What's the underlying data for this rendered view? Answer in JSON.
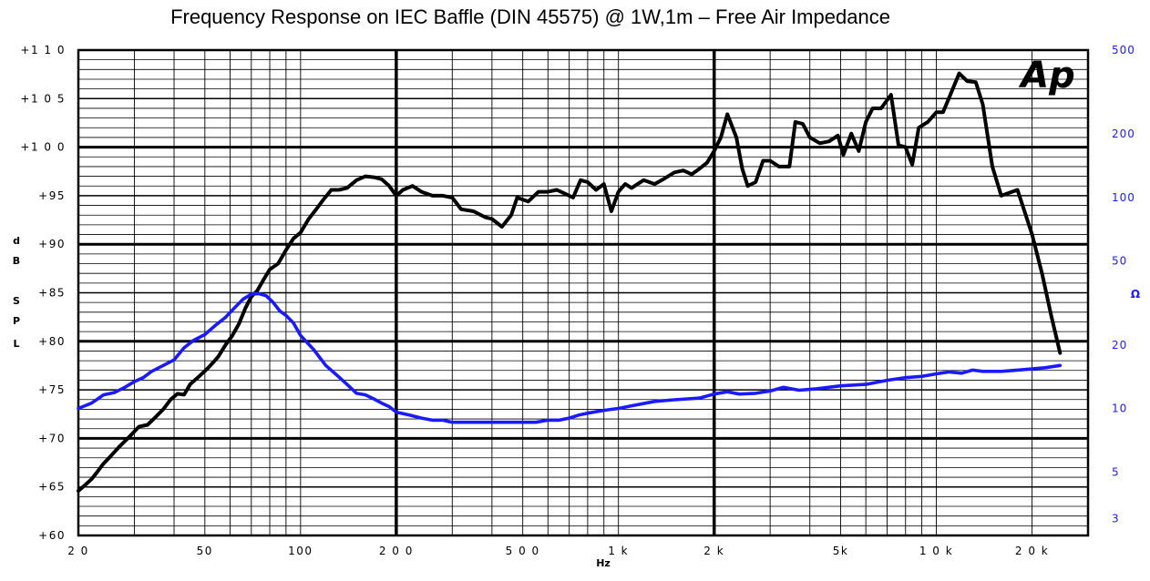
{
  "chart_data": {
    "type": "line",
    "title": "Frequency Response on IEC Baffle (DIN 45575)  @ 1W,1m – Free Air Impedance",
    "logo_text": "Ap",
    "x_axis": {
      "label": "Hz",
      "scale": "log",
      "range": [
        20,
        30000
      ],
      "ticks": [
        {
          "value": 20,
          "label": "2 0"
        },
        {
          "value": 50,
          "label": "50"
        },
        {
          "value": 100,
          "label": "100"
        },
        {
          "value": 200,
          "label": "2 0 0"
        },
        {
          "value": 500,
          "label": "5 0 0"
        },
        {
          "value": 1000,
          "label": "1 k"
        },
        {
          "value": 2000,
          "label": "2 k"
        },
        {
          "value": 5000,
          "label": "5k"
        },
        {
          "value": 10000,
          "label": "1 0 k"
        },
        {
          "value": 20000,
          "label": "2 0 k"
        }
      ]
    },
    "y_left": {
      "label_letters": [
        "d",
        "B",
        "",
        "S",
        "P",
        "L"
      ],
      "range": [
        60,
        110
      ],
      "ticks": [
        {
          "value": 110,
          "label": "+1 1 0"
        },
        {
          "value": 105,
          "label": "+1 0 5"
        },
        {
          "value": 100,
          "label": "+1 0 0"
        },
        {
          "value": 95,
          "label": "+95"
        },
        {
          "value": 90,
          "label": "+90"
        },
        {
          "value": 85,
          "label": "+85"
        },
        {
          "value": 80,
          "label": "+80"
        },
        {
          "value": 75,
          "label": "+75"
        },
        {
          "value": 70,
          "label": "+70"
        },
        {
          "value": 65,
          "label": "+65"
        },
        {
          "value": 60,
          "label": "+60"
        }
      ]
    },
    "y_right": {
      "label": "Ω",
      "scale": "log",
      "range": [
        2.5,
        500
      ],
      "ticks": [
        {
          "value": 500,
          "label": "500"
        },
        {
          "value": 200,
          "label": "200"
        },
        {
          "value": 100,
          "label": "100"
        },
        {
          "value": 50,
          "label": "50"
        },
        {
          "value": 20,
          "label": "20"
        },
        {
          "value": 10,
          "label": "10"
        },
        {
          "value": 5,
          "label": "5"
        },
        {
          "value": 3,
          "label": "3"
        }
      ]
    },
    "grid": true,
    "series": [
      {
        "color": "#000000",
        "axis": "left",
        "points": [
          [
            20,
            64.6
          ],
          [
            21,
            65.2
          ],
          [
            22,
            65.8
          ],
          [
            23,
            66.6
          ],
          [
            24,
            67.4
          ],
          [
            25,
            68.0
          ],
          [
            27,
            69.2
          ],
          [
            29,
            70.2
          ],
          [
            31,
            71.2
          ],
          [
            33,
            71.4
          ],
          [
            35,
            72.2
          ],
          [
            37,
            73.0
          ],
          [
            39,
            74.0
          ],
          [
            41,
            74.6
          ],
          [
            43,
            74.5
          ],
          [
            45,
            75.6
          ],
          [
            48,
            76.4
          ],
          [
            51,
            77.2
          ],
          [
            53,
            77.8
          ],
          [
            55,
            78.4
          ],
          [
            58,
            79.6
          ],
          [
            61,
            80.6
          ],
          [
            64,
            81.8
          ],
          [
            67,
            83.4
          ],
          [
            70,
            84.6
          ],
          [
            73,
            85.2
          ],
          [
            76,
            86.2
          ],
          [
            80,
            87.4
          ],
          [
            85,
            88.0
          ],
          [
            90,
            89.4
          ],
          [
            95,
            90.6
          ],
          [
            100,
            91.2
          ],
          [
            106,
            92.6
          ],
          [
            112,
            93.6
          ],
          [
            118,
            94.6
          ],
          [
            125,
            95.6
          ],
          [
            132,
            95.6
          ],
          [
            140,
            95.8
          ],
          [
            150,
            96.6
          ],
          [
            160,
            97.0
          ],
          [
            170,
            96.9
          ],
          [
            180,
            96.7
          ],
          [
            190,
            96.0
          ],
          [
            200,
            95.0
          ],
          [
            210,
            95.6
          ],
          [
            225,
            96.0
          ],
          [
            240,
            95.4
          ],
          [
            260,
            95.0
          ],
          [
            280,
            95.0
          ],
          [
            300,
            94.8
          ],
          [
            320,
            93.6
          ],
          [
            350,
            93.4
          ],
          [
            380,
            92.8
          ],
          [
            400,
            92.6
          ],
          [
            430,
            91.8
          ],
          [
            460,
            93.0
          ],
          [
            480,
            94.8
          ],
          [
            520,
            94.4
          ],
          [
            560,
            95.4
          ],
          [
            600,
            95.4
          ],
          [
            640,
            95.6
          ],
          [
            680,
            95.2
          ],
          [
            720,
            94.8
          ],
          [
            760,
            96.6
          ],
          [
            800,
            96.4
          ],
          [
            850,
            95.6
          ],
          [
            900,
            96.2
          ],
          [
            950,
            93.4
          ],
          [
            1000,
            95.4
          ],
          [
            1050,
            96.2
          ],
          [
            1100,
            95.8
          ],
          [
            1200,
            96.6
          ],
          [
            1300,
            96.2
          ],
          [
            1400,
            96.8
          ],
          [
            1500,
            97.4
          ],
          [
            1600,
            97.6
          ],
          [
            1700,
            97.2
          ],
          [
            1800,
            97.8
          ],
          [
            1900,
            98.4
          ],
          [
            2000,
            99.6
          ],
          [
            2100,
            101.0
          ],
          [
            2200,
            103.4
          ],
          [
            2350,
            101.0
          ],
          [
            2450,
            97.8
          ],
          [
            2550,
            96.0
          ],
          [
            2700,
            96.4
          ],
          [
            2850,
            98.6
          ],
          [
            3000,
            98.6
          ],
          [
            3200,
            98.0
          ],
          [
            3450,
            98.0
          ],
          [
            3600,
            102.6
          ],
          [
            3800,
            102.4
          ],
          [
            4000,
            101.0
          ],
          [
            4300,
            100.4
          ],
          [
            4600,
            100.6
          ],
          [
            4900,
            101.2
          ],
          [
            5100,
            99.2
          ],
          [
            5400,
            101.4
          ],
          [
            5700,
            99.6
          ],
          [
            6000,
            102.6
          ],
          [
            6300,
            104.0
          ],
          [
            6700,
            104.0
          ],
          [
            7200,
            105.4
          ],
          [
            7600,
            100.2
          ],
          [
            8000,
            100.0
          ],
          [
            8400,
            98.2
          ],
          [
            8800,
            102.0
          ],
          [
            9400,
            102.6
          ],
          [
            10000,
            103.6
          ],
          [
            10500,
            103.6
          ],
          [
            11000,
            105.2
          ],
          [
            11800,
            107.6
          ],
          [
            12500,
            106.8
          ],
          [
            13300,
            106.7
          ],
          [
            14000,
            104.4
          ],
          [
            15000,
            98.0
          ],
          [
            16000,
            95.0
          ],
          [
            18000,
            95.6
          ],
          [
            20000,
            91.0
          ],
          [
            21500,
            87.0
          ],
          [
            23000,
            82.6
          ],
          [
            24500,
            78.8
          ]
        ]
      },
      {
        "color": "#1a1aff",
        "axis": "right",
        "points": [
          [
            20,
            10.0
          ],
          [
            22,
            10.6
          ],
          [
            24,
            11.6
          ],
          [
            26,
            11.9
          ],
          [
            28,
            12.6
          ],
          [
            30,
            13.4
          ],
          [
            32,
            14.0
          ],
          [
            34,
            15.0
          ],
          [
            37,
            16.0
          ],
          [
            40,
            17.0
          ],
          [
            43,
            19.4
          ],
          [
            46,
            21.0
          ],
          [
            50,
            22.4
          ],
          [
            54,
            24.8
          ],
          [
            58,
            27.0
          ],
          [
            62,
            30.0
          ],
          [
            66,
            33.0
          ],
          [
            70,
            34.8
          ],
          [
            74,
            35.0
          ],
          [
            78,
            34.2
          ],
          [
            82,
            31.8
          ],
          [
            86,
            29.0
          ],
          [
            90,
            27.6
          ],
          [
            95,
            25.4
          ],
          [
            100,
            22.2
          ],
          [
            110,
            19.0
          ],
          [
            120,
            16.0
          ],
          [
            130,
            14.4
          ],
          [
            140,
            13.0
          ],
          [
            150,
            11.8
          ],
          [
            160,
            11.6
          ],
          [
            170,
            11.1
          ],
          [
            180,
            10.6
          ],
          [
            190,
            10.2
          ],
          [
            200,
            9.6
          ],
          [
            220,
            9.3
          ],
          [
            240,
            9.0
          ],
          [
            260,
            8.8
          ],
          [
            280,
            8.8
          ],
          [
            300,
            8.6
          ],
          [
            350,
            8.6
          ],
          [
            400,
            8.6
          ],
          [
            450,
            8.6
          ],
          [
            500,
            8.6
          ],
          [
            550,
            8.6
          ],
          [
            600,
            8.8
          ],
          [
            650,
            8.8
          ],
          [
            700,
            9.0
          ],
          [
            750,
            9.3
          ],
          [
            800,
            9.5
          ],
          [
            900,
            9.8
          ],
          [
            1000,
            10.0
          ],
          [
            1100,
            10.3
          ],
          [
            1300,
            10.8
          ],
          [
            1500,
            11.0
          ],
          [
            1800,
            11.2
          ],
          [
            2000,
            11.7
          ],
          [
            2200,
            12.0
          ],
          [
            2400,
            11.7
          ],
          [
            2700,
            11.8
          ],
          [
            3000,
            12.1
          ],
          [
            3300,
            12.6
          ],
          [
            3700,
            12.2
          ],
          [
            4200,
            12.4
          ],
          [
            5000,
            12.8
          ],
          [
            6000,
            13.0
          ],
          [
            7000,
            13.6
          ],
          [
            8000,
            14.0
          ],
          [
            9000,
            14.2
          ],
          [
            10000,
            14.6
          ],
          [
            11000,
            14.9
          ],
          [
            12000,
            14.7
          ],
          [
            13000,
            15.2
          ],
          [
            14000,
            15.0
          ],
          [
            16000,
            15.0
          ],
          [
            18000,
            15.2
          ],
          [
            20000,
            15.4
          ],
          [
            22000,
            15.6
          ],
          [
            24500,
            16.0
          ]
        ]
      }
    ]
  }
}
